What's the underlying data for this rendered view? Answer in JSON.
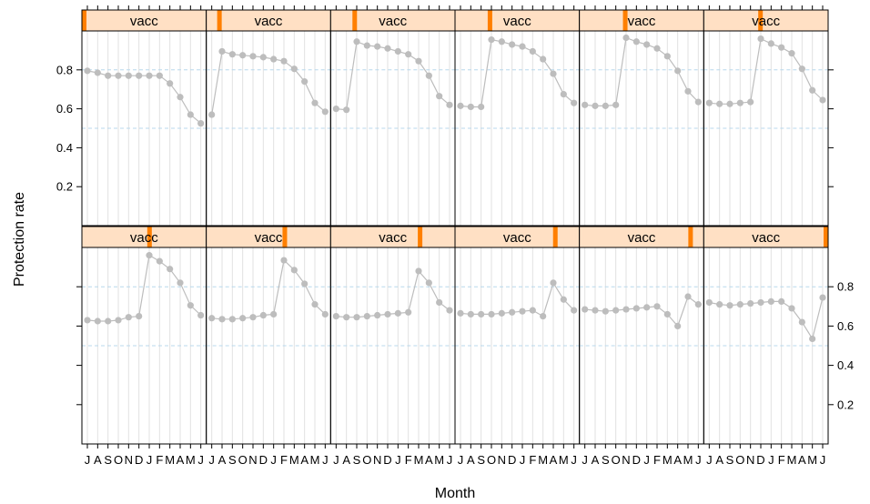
{
  "chart_data": {
    "type": "line",
    "layout": "lattice 6 x 2 panels",
    "ylabel": "Protection rate",
    "xlabel": "Month",
    "strip_label": "vacc",
    "months": [
      "J",
      "A",
      "S",
      "O",
      "N",
      "D",
      "J",
      "F",
      "M",
      "A",
      "M",
      "J"
    ],
    "y_ticks": [
      "0.2",
      "0.4",
      "0.6",
      "0.8"
    ],
    "y_tick_values": [
      0.2,
      0.4,
      0.6,
      0.8
    ],
    "ylim": [
      0.0,
      1.0
    ],
    "reference_lines": [
      0.5,
      0.8
    ],
    "colors": {
      "line": "#bdbdbd",
      "point": "#bdbdbd",
      "strip_bg": "#ffe0c4",
      "strip_marker": "#ff7f00",
      "ref_line": "#b8d8ec",
      "grid": "#e2e2e2"
    },
    "panels": [
      {
        "vacc_month": 1,
        "values": [
          0.795,
          0.785,
          0.77,
          0.77,
          0.77,
          0.77,
          0.77,
          0.77,
          0.73,
          0.66,
          0.57,
          0.525
        ]
      },
      {
        "vacc_month": 2,
        "values": [
          0.57,
          0.895,
          0.88,
          0.875,
          0.87,
          0.865,
          0.855,
          0.845,
          0.805,
          0.74,
          0.63,
          0.585
        ]
      },
      {
        "vacc_month": 3,
        "values": [
          0.6,
          0.595,
          0.945,
          0.925,
          0.92,
          0.91,
          0.895,
          0.88,
          0.845,
          0.77,
          0.665,
          0.62
        ]
      },
      {
        "vacc_month": 4,
        "values": [
          0.615,
          0.61,
          0.61,
          0.955,
          0.945,
          0.93,
          0.92,
          0.895,
          0.855,
          0.78,
          0.675,
          0.63
        ]
      },
      {
        "vacc_month": 5,
        "values": [
          0.62,
          0.615,
          0.615,
          0.62,
          0.965,
          0.945,
          0.93,
          0.91,
          0.87,
          0.795,
          0.69,
          0.635
        ]
      },
      {
        "vacc_month": 6,
        "values": [
          0.63,
          0.625,
          0.625,
          0.63,
          0.635,
          0.96,
          0.935,
          0.915,
          0.885,
          0.805,
          0.695,
          0.645
        ]
      },
      {
        "vacc_month": 7,
        "values": [
          0.63,
          0.625,
          0.625,
          0.63,
          0.645,
          0.65,
          0.96,
          0.93,
          0.89,
          0.82,
          0.705,
          0.655
        ]
      },
      {
        "vacc_month": 8,
        "values": [
          0.64,
          0.635,
          0.635,
          0.64,
          0.645,
          0.655,
          0.66,
          0.935,
          0.885,
          0.815,
          0.71,
          0.66
        ]
      },
      {
        "vacc_month": 9,
        "values": [
          0.65,
          0.645,
          0.645,
          0.65,
          0.655,
          0.66,
          0.665,
          0.67,
          0.88,
          0.82,
          0.72,
          0.68
        ]
      },
      {
        "vacc_month": 10,
        "values": [
          0.665,
          0.66,
          0.66,
          0.66,
          0.665,
          0.67,
          0.675,
          0.68,
          0.65,
          0.82,
          0.735,
          0.68
        ]
      },
      {
        "vacc_month": 11,
        "values": [
          0.685,
          0.68,
          0.675,
          0.68,
          0.685,
          0.69,
          0.695,
          0.7,
          0.66,
          0.6,
          0.75,
          0.71
        ]
      },
      {
        "vacc_month": 12,
        "values": [
          0.72,
          0.71,
          0.705,
          0.71,
          0.715,
          0.72,
          0.725,
          0.725,
          0.69,
          0.62,
          0.535,
          0.745
        ]
      }
    ]
  }
}
